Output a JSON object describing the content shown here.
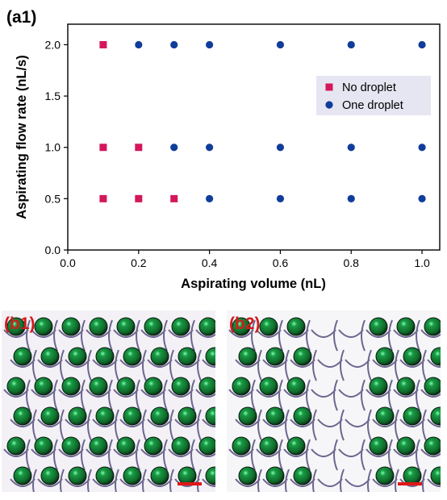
{
  "chart_data": {
    "panel_label": "(a1)",
    "type": "scatter",
    "xlabel": "Aspirating volume (nL)",
    "ylabel": "Aspirating flow rate (nL/s)",
    "xlim": [
      0.0,
      1.05
    ],
    "ylim": [
      0.0,
      2.2
    ],
    "xticks": [
      "0.0",
      "0.2",
      "0.4",
      "0.6",
      "0.8",
      "1.0"
    ],
    "yticks": [
      "0.0",
      "0.5",
      "1.0",
      "1.5",
      "2.0"
    ],
    "legend_position": "upper-right",
    "series": [
      {
        "name": "No droplet",
        "marker": "square",
        "color": "#d4165a",
        "points": [
          [
            0.1,
            2.0
          ],
          [
            0.1,
            1.0
          ],
          [
            0.2,
            1.0
          ],
          [
            0.1,
            0.5
          ],
          [
            0.2,
            0.5
          ],
          [
            0.3,
            0.5
          ]
        ]
      },
      {
        "name": "One droplet",
        "marker": "circle",
        "color": "#103d9b",
        "points": [
          [
            0.2,
            2.0
          ],
          [
            0.3,
            2.0
          ],
          [
            0.4,
            2.0
          ],
          [
            0.6,
            2.0
          ],
          [
            0.8,
            2.0
          ],
          [
            1.0,
            2.0
          ],
          [
            0.3,
            1.0
          ],
          [
            0.4,
            1.0
          ],
          [
            0.6,
            1.0
          ],
          [
            0.8,
            1.0
          ],
          [
            1.0,
            1.0
          ],
          [
            0.4,
            0.5
          ],
          [
            0.6,
            0.5
          ],
          [
            0.8,
            0.5
          ],
          [
            1.0,
            0.5
          ]
        ]
      }
    ]
  },
  "micrographs": [
    {
      "label": "(b1)",
      "filled_rows": [
        [
          1,
          1,
          1,
          1,
          1,
          1,
          1,
          1
        ],
        [
          1,
          1,
          1,
          1,
          1,
          1,
          1,
          1
        ],
        [
          1,
          1,
          1,
          1,
          1,
          1,
          1,
          1
        ],
        [
          1,
          1,
          1,
          1,
          1,
          1,
          1,
          1
        ],
        [
          1,
          1,
          1,
          1,
          1,
          1,
          1,
          1
        ],
        [
          1,
          1,
          1,
          1,
          1,
          1,
          1,
          1
        ]
      ]
    },
    {
      "label": "(b2)",
      "filled_rows": [
        [
          1,
          1,
          1,
          0,
          0,
          1,
          1,
          1
        ],
        [
          1,
          1,
          1,
          0,
          0,
          1,
          1,
          1
        ],
        [
          1,
          1,
          1,
          0,
          0,
          1,
          1,
          1
        ],
        [
          1,
          1,
          1,
          0,
          0,
          1,
          1,
          1
        ],
        [
          1,
          1,
          1,
          0,
          0,
          1,
          1,
          1
        ],
        [
          1,
          1,
          1,
          0,
          0,
          1,
          1,
          1
        ]
      ]
    }
  ],
  "colors": {
    "scale_bar": "#e01818",
    "droplet": "#0f6a2a",
    "grid_line": "#6d6690"
  }
}
